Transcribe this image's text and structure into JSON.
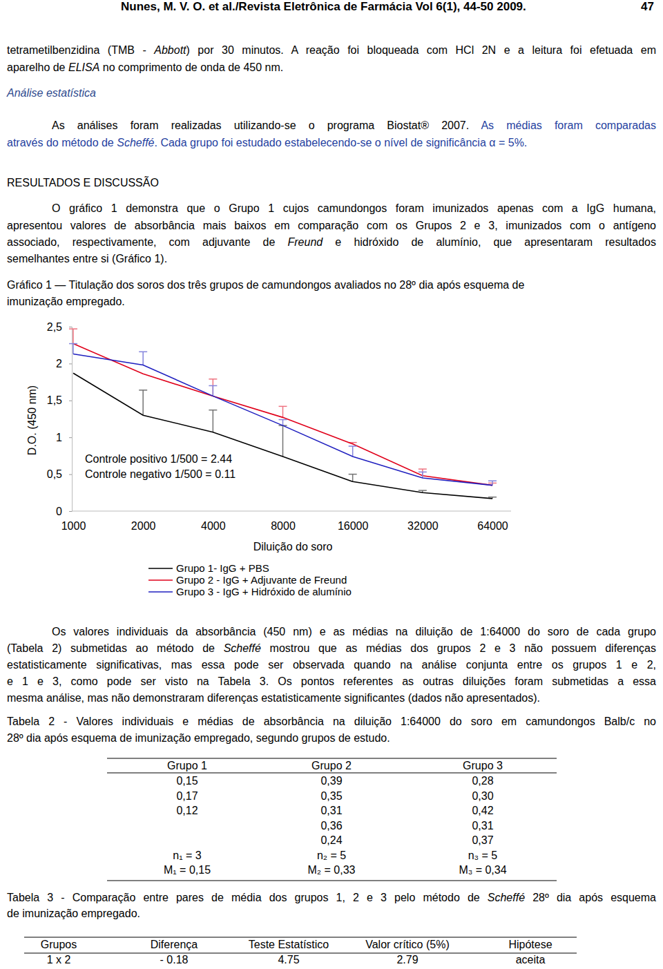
{
  "header": {
    "running_head": "Nunes, M. V. O. et al./Revista Eletrônica de Farmácia Vol 6(1), 44-50 2009.",
    "page_number": "47"
  },
  "text_lines": [
    [
      "tetrametilbenzidina (TMB - ",
      {
        "text": "Abbott",
        "italic": true
      },
      ") por 30 minutos. A reação foi bloqueada com HCl 2N e a leitura foi efetuada em"
    ],
    [
      "aparelho de ",
      {
        "text": "ELISA",
        "italic": true
      },
      " no comprimento de onda de 450 nm."
    ],
    [
      {
        "text": "Análise estatística",
        "italic": true,
        "color": "#2e4a8e"
      }
    ],
    [
      "As análises foram realizadas utilizando-se o programa Biostat® 2007. ",
      {
        "text": "As médias foram comparadas",
        "color": "#1f3f9f"
      }
    ],
    [
      {
        "text": "através do método de ",
        "color": "#1f3f9f"
      },
      {
        "text": "Scheffé",
        "italic": true,
        "color": "#1f3f9f"
      },
      {
        "text": ". Cada grupo foi estudado estabelecendo-se o nível de significância α = 5%.",
        "color": "#1f3f9f"
      }
    ],
    [
      "RESULTADOS E DISCUSSÃO"
    ],
    [
      "O gráfico 1 demonstra que o Grupo 1 cujos camundongos foram imunizados apenas com a IgG humana,"
    ],
    [
      "apresentou valores de absorbância mais baixos em comparação com os Grupos 2 e 3, imunizados com o antígeno"
    ],
    [
      "associado, respectivamente, com adjuvante de ",
      {
        "text": "Freund",
        "italic": true
      },
      " e hidróxido de alumínio, que apresentaram resultados"
    ],
    [
      "semelhantes entre si (Gráfico 1)."
    ],
    [
      "Gráfico 1 — Titulação dos soros dos três grupos de camundongos avaliados no 28º dia após esquema de"
    ],
    [
      "imunização empregado."
    ],
    [
      "Os valores individuais da absorbância (450 nm) e as médias na diluição de 1:64000 do soro de cada grupo"
    ],
    [
      "(Tabela 2) submetidas ao método de ",
      {
        "text": "Scheffé",
        "italic": true
      },
      " mostrou que as médias dos grupos 2 e 3 não possuem diferenças"
    ],
    [
      "estatisticamente significativas, mas essa pode ser observada quando na análise conjunta entre os grupos 1 e 2,"
    ],
    [
      "e 1 e 3, como pode ser visto na Tabela 3. Os pontos referentes as outras diluições foram submetidas a essa"
    ],
    [
      "mesma análise, mas não demonstraram diferenças estatisticamente significantes (dados não apresentados)."
    ],
    [
      "Tabela 2 - Valores individuais e médias de absorbância na diluição 1:64000 do soro em camundongos Balb/c no"
    ],
    [
      "28º dia após esquema de imunização empregado, segundo grupos de estudo."
    ],
    [
      "Tabela 3 - Comparação entre pares de média dos grupos 1, 2 e 3 pelo método de ",
      {
        "text": "Scheffé",
        "italic": true
      },
      " 28º dia após esquema"
    ],
    [
      "de imunização empregado."
    ]
  ],
  "chart_data": {
    "type": "line",
    "x_label": "Diluição do soro",
    "y_label": "D.O. (450 nm)",
    "categories": [
      "1000",
      "2000",
      "4000",
      "8000",
      "16000",
      "32000",
      "64000"
    ],
    "ylim": [
      0,
      2.5
    ],
    "yticks": [
      0,
      {
        "value": 0.5,
        "label": "0,5"
      },
      1,
      {
        "value": 1.5,
        "label": "1,5"
      },
      2,
      {
        "value": 2.5,
        "label": "2,5"
      }
    ],
    "grid": false,
    "legend": "bottom",
    "annotations": [
      "Controle positivo 1/500 = 2.44",
      "Controle negativo 1/500 = 0.11"
    ],
    "series": [
      {
        "name": "Grupo 1- IgG + PBS",
        "color": "#000000",
        "values": [
          1.87,
          1.3,
          1.07,
          0.74,
          0.4,
          0.25,
          0.17
        ],
        "errors": [
          null,
          0.34,
          0.3,
          0.42,
          0.1,
          0.03,
          0.02
        ]
      },
      {
        "name": "Grupo 2 - IgG + Adjuvante de Freund",
        "color": "#e0001a",
        "values": [
          2.27,
          1.86,
          1.56,
          1.27,
          0.91,
          0.48,
          0.35
        ],
        "errors": [
          0.2,
          null,
          0.23,
          0.15,
          0.02,
          0.09,
          0.03
        ]
      },
      {
        "name": "Grupo 3 - IgG + Hidróxido de alumínio",
        "color": "#1f1fbf",
        "values": [
          2.13,
          1.98,
          1.56,
          1.16,
          0.74,
          0.45,
          0.35
        ],
        "errors": [
          0.14,
          0.18,
          0.14,
          0.08,
          0.14,
          0.08,
          0.06
        ]
      }
    ]
  },
  "table_2": {
    "columns": [
      "Grupo 1",
      "Grupo 2",
      "Grupo 3"
    ],
    "rows": [
      [
        "0,15",
        "0,39",
        "0,28"
      ],
      [
        "0,17",
        "0,35",
        "0,30"
      ],
      [
        "0,12",
        "0,31",
        "0,42"
      ],
      [
        null,
        "0,36",
        "0,31"
      ],
      [
        null,
        "0,24",
        "0,37"
      ],
      [
        "n₁ = 3",
        "n₂ = 5",
        "n₃ = 5"
      ],
      [
        "M₁ = 0,15",
        "M₂ = 0,33",
        "M₃ = 0,34"
      ]
    ]
  },
  "table_3": {
    "columns": [
      "Grupos",
      "Diferença",
      "Teste Estatístico",
      "Valor crítico (5%)",
      "Hipótese"
    ],
    "rows": [
      [
        "1 x 2",
        "- 0.18",
        "4.75",
        "2.79",
        "aceita"
      ]
    ]
  }
}
